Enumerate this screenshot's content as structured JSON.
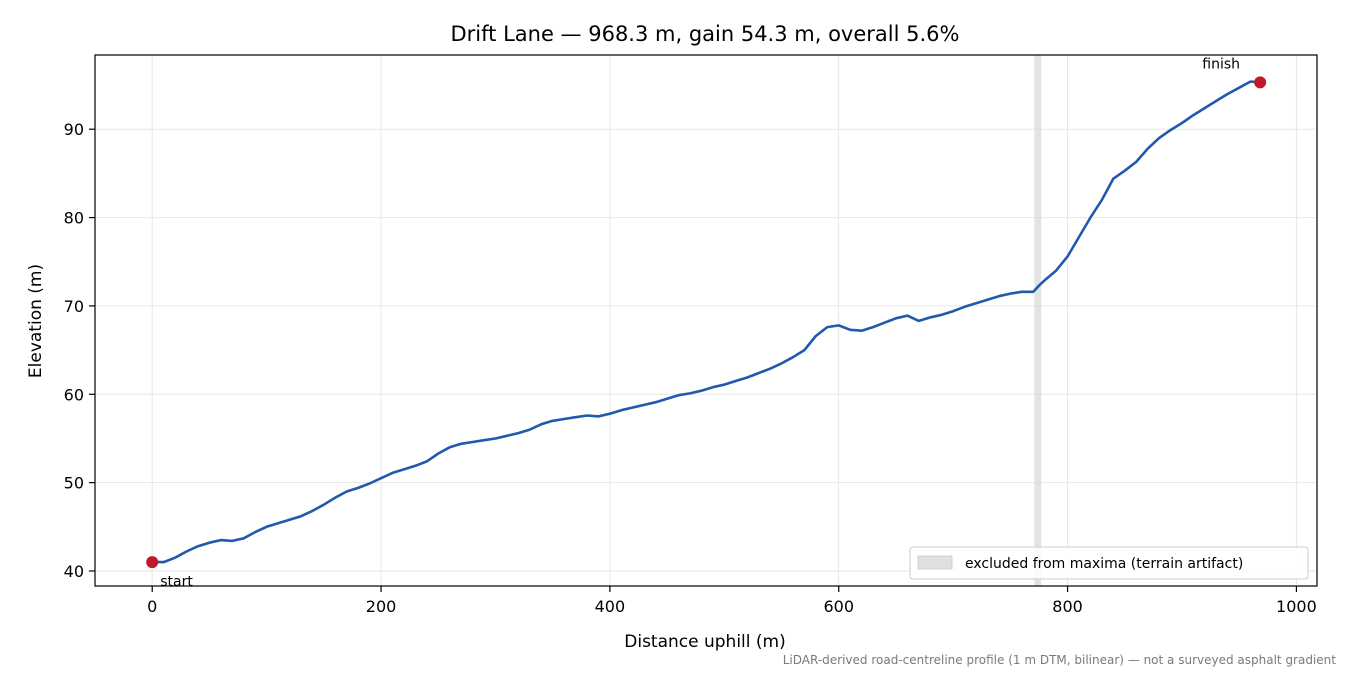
{
  "chart_data": {
    "type": "line",
    "title": "Drift Lane — 968.3 m, gain 54.3 m, overall 5.6%",
    "xlabel": "Distance uphill (m)",
    "ylabel": "Elevation (m)",
    "xlim": [
      -50,
      1018
    ],
    "ylim": [
      38.3,
      98.4
    ],
    "xticks": [
      0,
      200,
      400,
      600,
      800,
      1000
    ],
    "yticks": [
      40,
      50,
      60,
      70,
      80,
      90
    ],
    "grid": true,
    "line_color": "#1f5aad",
    "marker_color": "#c0182a",
    "excluded_band_color": "#d9d9d9",
    "series": [
      {
        "points": [
          [
            0,
            41.0
          ],
          [
            10,
            41.0
          ],
          [
            20,
            41.5
          ],
          [
            30,
            42.2
          ],
          [
            40,
            42.8
          ],
          [
            50,
            43.2
          ],
          [
            60,
            43.5
          ],
          [
            70,
            43.4
          ],
          [
            80,
            43.7
          ],
          [
            90,
            44.4
          ],
          [
            100,
            45.0
          ],
          [
            110,
            45.4
          ],
          [
            120,
            45.8
          ],
          [
            130,
            46.2
          ],
          [
            140,
            46.8
          ],
          [
            150,
            47.5
          ],
          [
            160,
            48.3
          ],
          [
            170,
            49.0
          ],
          [
            180,
            49.4
          ],
          [
            190,
            49.9
          ],
          [
            200,
            50.5
          ],
          [
            210,
            51.1
          ],
          [
            220,
            51.5
          ],
          [
            230,
            51.9
          ],
          [
            240,
            52.4
          ],
          [
            250,
            53.3
          ],
          [
            260,
            54.0
          ],
          [
            270,
            54.4
          ],
          [
            280,
            54.6
          ],
          [
            290,
            54.8
          ],
          [
            300,
            55.0
          ],
          [
            310,
            55.3
          ],
          [
            320,
            55.6
          ],
          [
            330,
            56.0
          ],
          [
            340,
            56.6
          ],
          [
            350,
            57.0
          ],
          [
            360,
            57.2
          ],
          [
            370,
            57.4
          ],
          [
            380,
            57.6
          ],
          [
            390,
            57.5
          ],
          [
            400,
            57.8
          ],
          [
            410,
            58.2
          ],
          [
            420,
            58.5
          ],
          [
            430,
            58.8
          ],
          [
            440,
            59.1
          ],
          [
            450,
            59.5
          ],
          [
            460,
            59.9
          ],
          [
            470,
            60.1
          ],
          [
            480,
            60.4
          ],
          [
            490,
            60.8
          ],
          [
            500,
            61.1
          ],
          [
            510,
            61.5
          ],
          [
            520,
            61.9
          ],
          [
            530,
            62.4
          ],
          [
            540,
            62.9
          ],
          [
            550,
            63.5
          ],
          [
            560,
            64.2
          ],
          [
            570,
            65.0
          ],
          [
            580,
            66.6
          ],
          [
            590,
            67.6
          ],
          [
            600,
            67.8
          ],
          [
            610,
            67.3
          ],
          [
            620,
            67.2
          ],
          [
            630,
            67.6
          ],
          [
            640,
            68.1
          ],
          [
            650,
            68.6
          ],
          [
            660,
            68.9
          ],
          [
            670,
            68.3
          ],
          [
            680,
            68.7
          ],
          [
            690,
            69.0
          ],
          [
            700,
            69.4
          ],
          [
            710,
            69.9
          ],
          [
            720,
            70.3
          ],
          [
            730,
            70.7
          ],
          [
            740,
            71.1
          ],
          [
            750,
            71.4
          ],
          [
            760,
            71.6
          ],
          [
            770,
            71.6
          ],
          [
            775,
            72.3
          ],
          [
            780,
            72.9
          ],
          [
            790,
            74.0
          ],
          [
            800,
            75.6
          ],
          [
            810,
            77.8
          ],
          [
            820,
            80.0
          ],
          [
            830,
            82.0
          ],
          [
            840,
            84.4
          ],
          [
            850,
            85.3
          ],
          [
            860,
            86.3
          ],
          [
            870,
            87.8
          ],
          [
            880,
            89.0
          ],
          [
            890,
            89.9
          ],
          [
            900,
            90.7
          ],
          [
            910,
            91.6
          ],
          [
            920,
            92.4
          ],
          [
            930,
            93.2
          ],
          [
            940,
            94.0
          ],
          [
            950,
            94.7
          ],
          [
            960,
            95.4
          ],
          [
            968.3,
            95.3
          ]
        ]
      }
    ],
    "start_point": [
      0,
      41.0
    ],
    "finish_point": [
      968.3,
      95.3
    ],
    "annotations": {
      "start_label": "start",
      "finish_label": "finish"
    },
    "excluded_band": [
      771,
      777
    ],
    "legend": {
      "position": "lower right",
      "label": "excluded from maxima (terrain artifact)"
    },
    "footnote": "LiDAR-derived road-centreline profile (1 m DTM, bilinear) — not a surveyed asphalt gradient"
  }
}
